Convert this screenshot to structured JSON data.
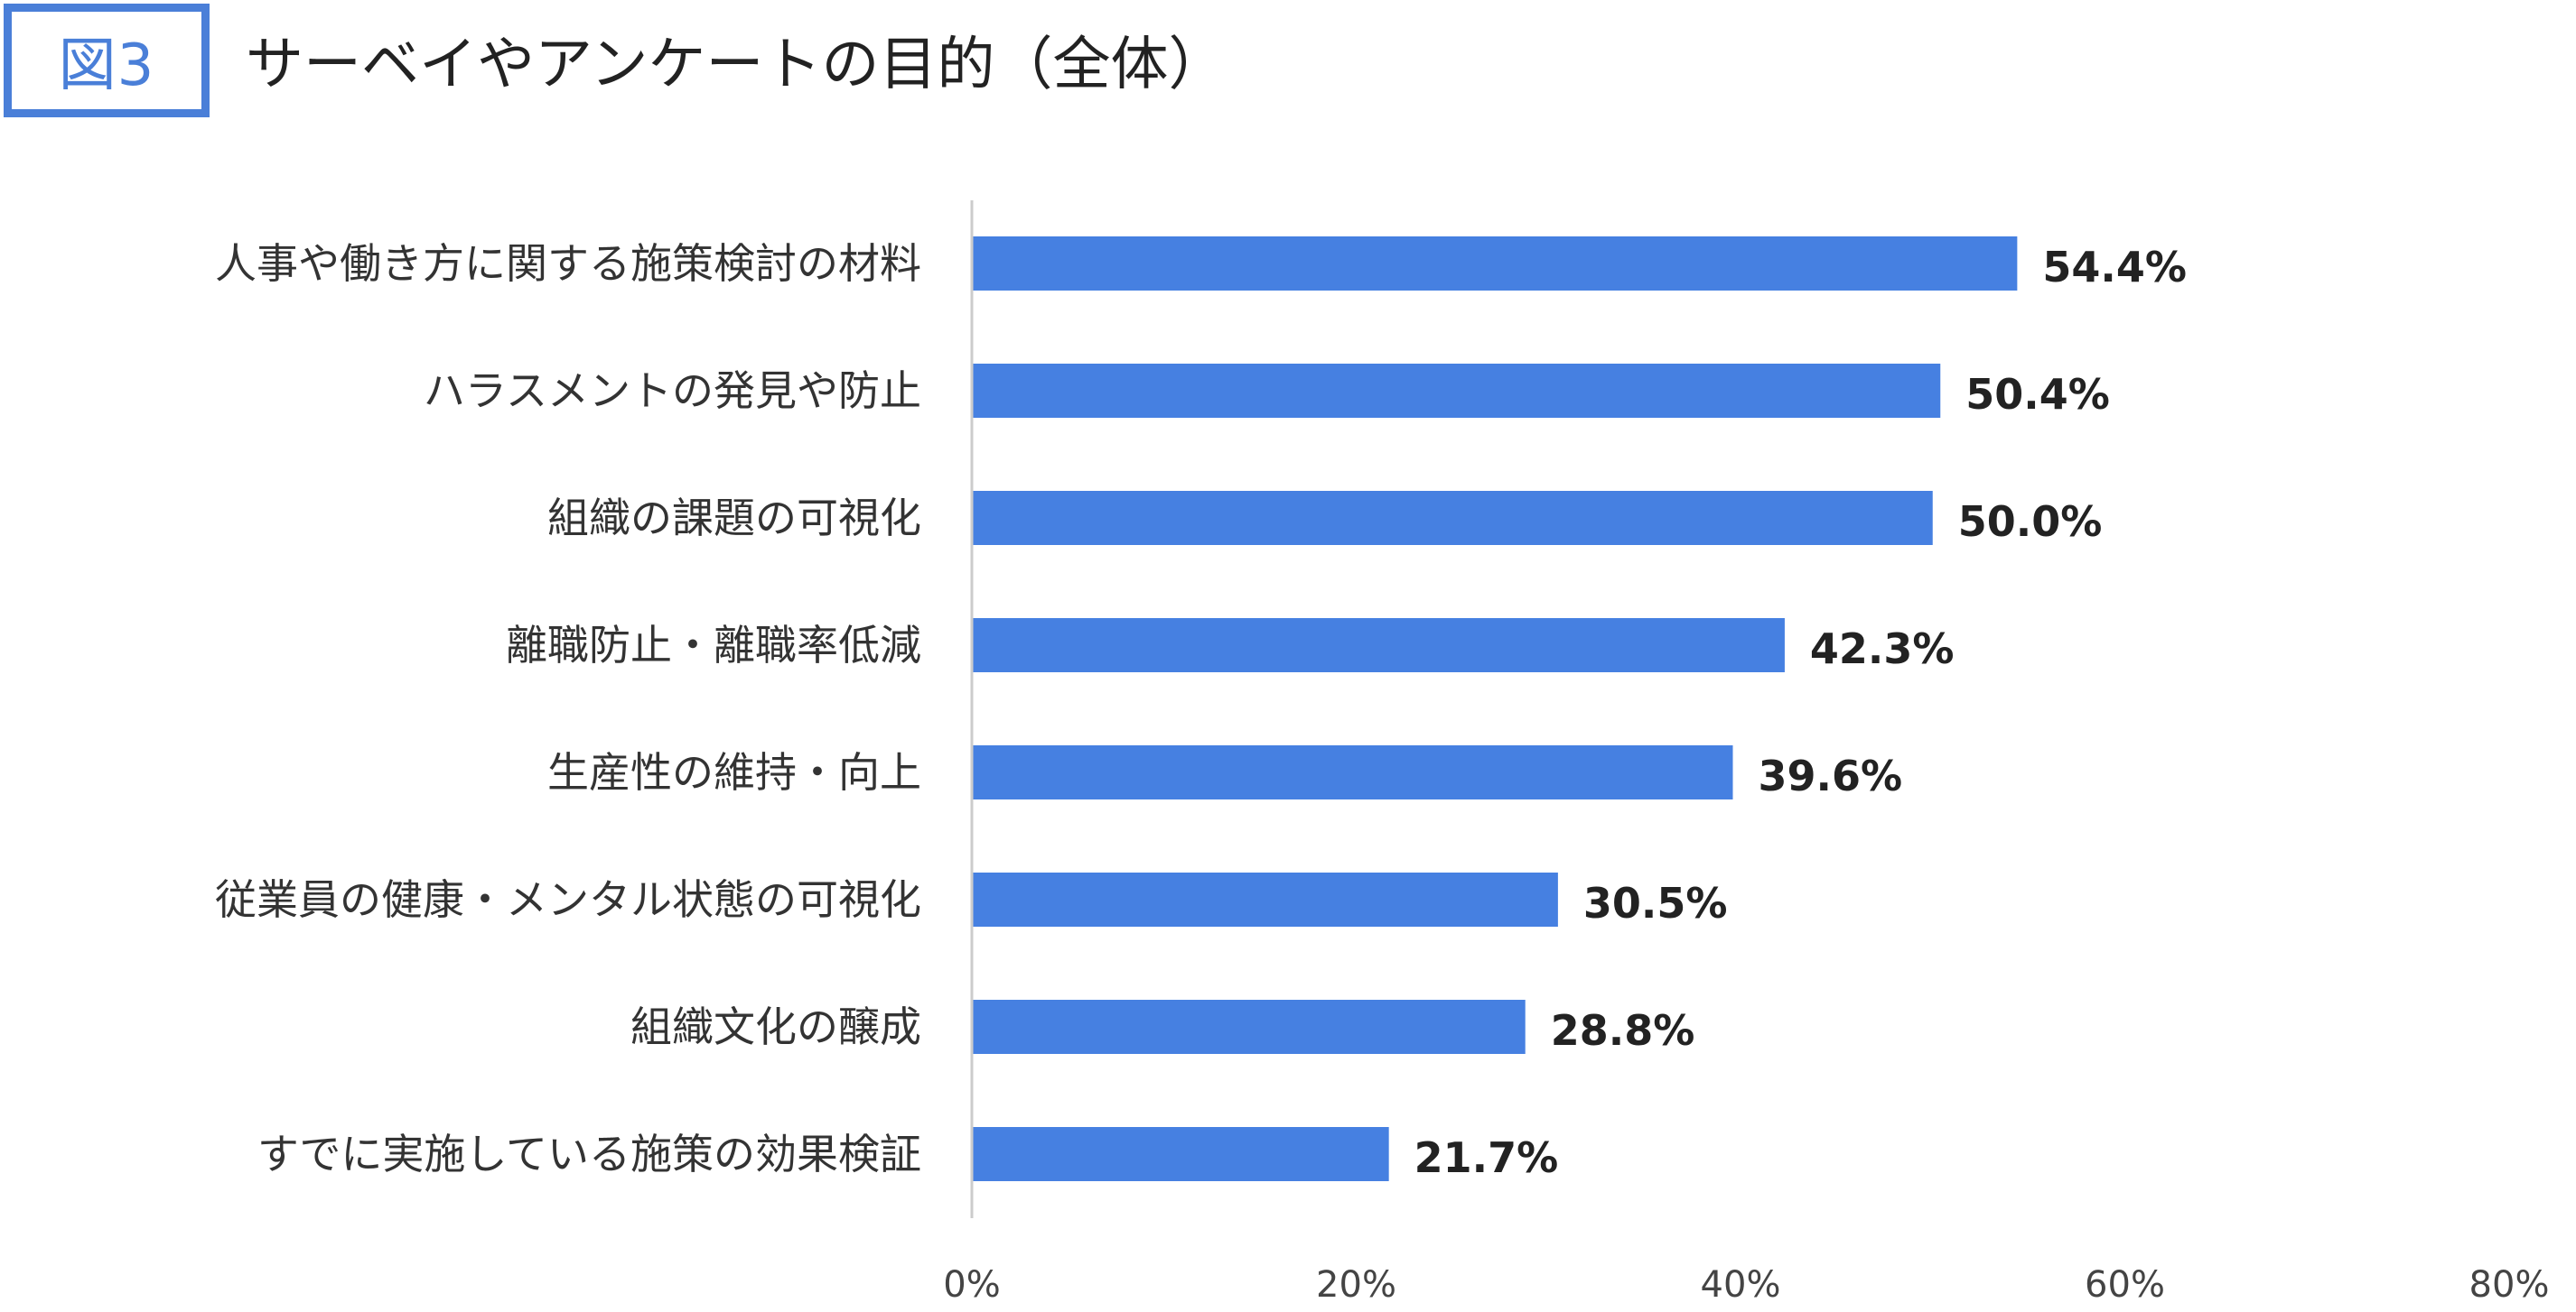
{
  "figure": {
    "badge": "図3",
    "title": "サーベイやアンケートの目的（全体）"
  },
  "colors": {
    "accent": "#4a7fd8",
    "bar": "#4680e1",
    "axis": "#cccccc"
  },
  "chart_data": {
    "type": "bar",
    "orientation": "horizontal",
    "categories": [
      "人事や働き方に関する施策検討の材料",
      "ハラスメントの発見や防止",
      "組織の課題の可視化",
      "離職防止・離職率低減",
      "生産性の維持・向上",
      "従業員の健康・メンタル状態の可視化",
      "組織文化の醸成",
      "すでに実施している施策の効果検証"
    ],
    "values": [
      54.4,
      50.4,
      50.0,
      42.3,
      39.6,
      30.5,
      28.8,
      21.7
    ],
    "value_labels": [
      "54.4%",
      "50.4%",
      "50.0%",
      "42.3%",
      "39.6%",
      "30.5%",
      "28.8%",
      "21.7%"
    ],
    "xlim": [
      0,
      80
    ],
    "x_ticks": [
      0,
      20,
      40,
      60,
      80
    ],
    "x_tick_labels": [
      "0%",
      "20%",
      "40%",
      "60%",
      "80%"
    ],
    "grid": false,
    "legend": "none"
  }
}
